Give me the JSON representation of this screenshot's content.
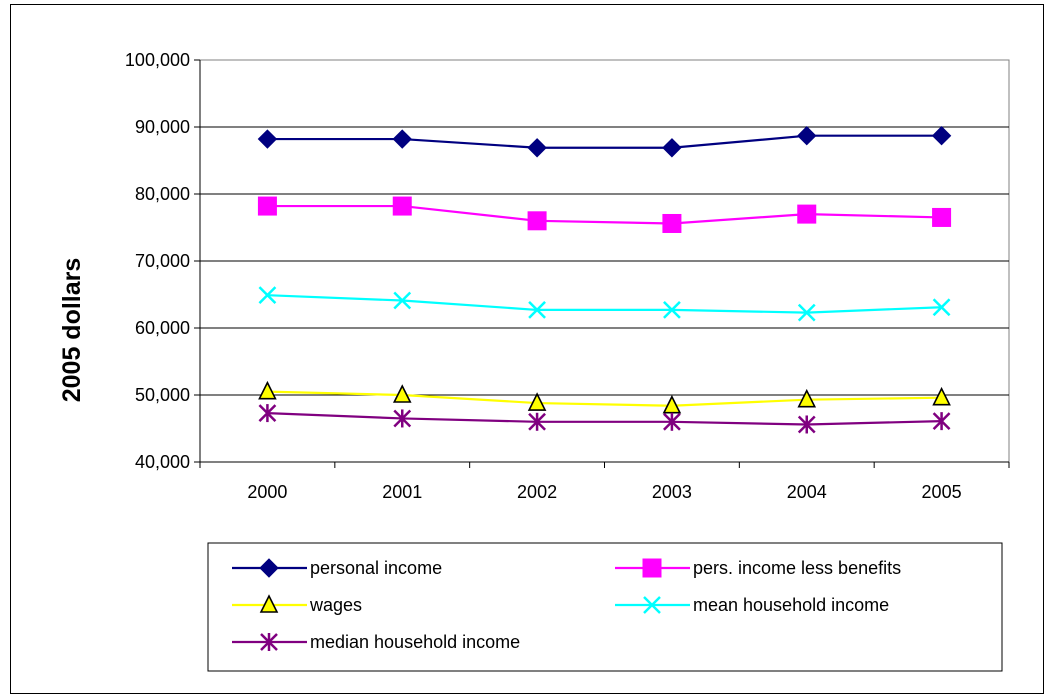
{
  "chart_data": {
    "type": "line",
    "title": "",
    "xlabel": "",
    "ylabel": "2005 dollars",
    "categories": [
      "2000",
      "2001",
      "2002",
      "2003",
      "2004",
      "2005"
    ],
    "ylim": [
      40000,
      100000
    ],
    "yticks": [
      40000,
      50000,
      60000,
      70000,
      80000,
      90000,
      100000
    ],
    "ytick_labels": [
      "40,000",
      "50,000",
      "60,000",
      "70,000",
      "80,000",
      "90,000",
      "100,000"
    ],
    "grid": true,
    "legend_position": "bottom",
    "series": [
      {
        "name": "personal income",
        "color": "#000080",
        "marker": "diamond",
        "values": [
          88200,
          88200,
          86900,
          86900,
          88700,
          88700
        ]
      },
      {
        "name": "pers. income less benefits",
        "color": "#FF00FF",
        "marker": "square",
        "values": [
          78200,
          78200,
          76000,
          75600,
          77000,
          76500
        ]
      },
      {
        "name": "wages",
        "color": "#FFFF00",
        "marker": "triangle",
        "values": [
          50500,
          50000,
          48800,
          48400,
          49300,
          49600
        ]
      },
      {
        "name": "mean household income",
        "color": "#00FFFF",
        "marker": "x",
        "values": [
          64900,
          64100,
          62700,
          62700,
          62300,
          63100
        ]
      },
      {
        "name": "median household income",
        "color": "#800080",
        "marker": "star",
        "values": [
          47300,
          46500,
          46000,
          46000,
          45600,
          46100
        ]
      }
    ]
  }
}
